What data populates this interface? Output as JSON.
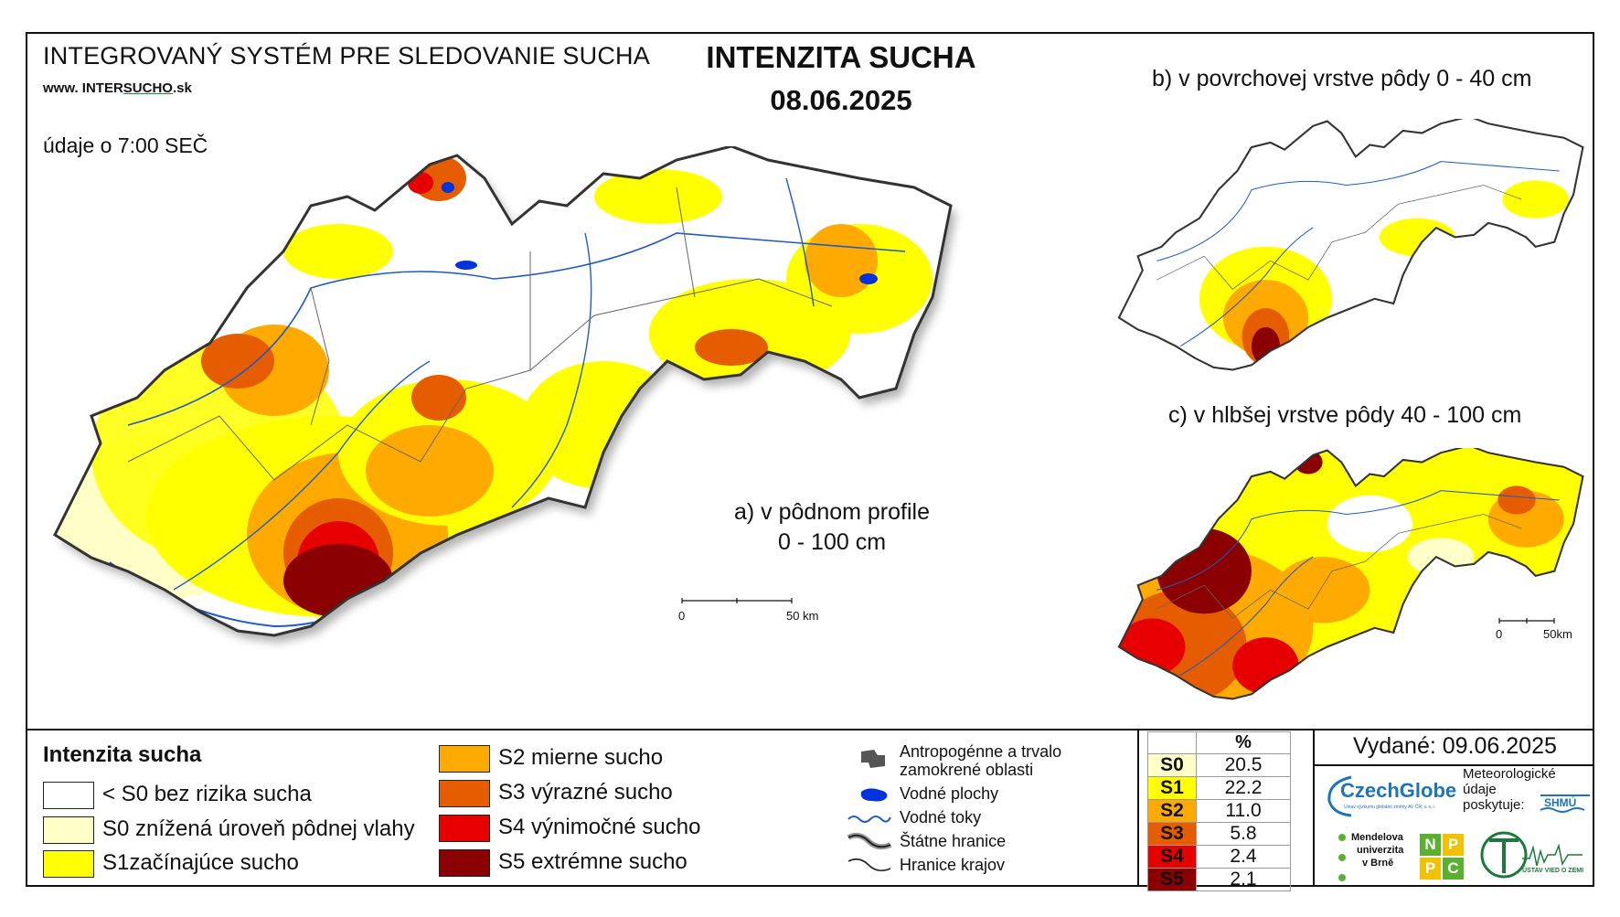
{
  "header": {
    "system_title": "INTEGROVANÝ SYSTÉM PRE SLEDOVANIE SUCHA",
    "site_prefix": "www. INTER",
    "site_mid": "SUCHO",
    "site_suffix": ".sk",
    "data_time": "údaje o 7:00 SEČ",
    "main_title": "INTENZITA SUCHA",
    "date": "08.06.2025"
  },
  "maps": {
    "a_label_line1": "a) v pôdnom profile",
    "a_label_line2": "0 - 100 cm",
    "b_label": "b) v povrchovej vrstve pôdy 0 - 40 cm",
    "c_label": "c) v hlbšej vrstve pôdy 40 - 100 cm",
    "scale_main_0": "0",
    "scale_main_50": "50 km",
    "scale_small_0": "0",
    "scale_small_50": "50km"
  },
  "legend": {
    "title": "Intenzita sucha",
    "classes": [
      {
        "label": "< S0 bez rizika sucha",
        "color": "#ffffff"
      },
      {
        "label": "S0 znížená úroveň pôdnej vlahy",
        "color": "#ffffc8"
      },
      {
        "label": "S1začínajúce sucho",
        "color": "#ffff00"
      },
      {
        "label": "S2 mierne sucho",
        "color": "#ffaa00"
      },
      {
        "label": "S3 výrazné sucho",
        "color": "#e65c00"
      },
      {
        "label": "S4 výnimočné sucho",
        "color": "#e60000"
      },
      {
        "label": "S5 extrémne sucho",
        "color": "#8b0000"
      }
    ],
    "symbols": [
      {
        "label_line1": "Antropogénne a trvalo",
        "label_line2": "zamokrené oblasti",
        "icon": "urban-area-icon"
      },
      {
        "label_line1": "Vodné plochy",
        "icon": "water-body-icon"
      },
      {
        "label_line1": "Vodné toky",
        "icon": "river-icon"
      },
      {
        "label_line1": "Štátne hranice",
        "icon": "state-border-icon"
      },
      {
        "label_line1": "Hranice krajov",
        "icon": "region-border-icon"
      }
    ]
  },
  "percent_table": {
    "header": "%",
    "rows": [
      {
        "code": "S0",
        "value": "20.5",
        "color": "#ffffc8"
      },
      {
        "code": "S1",
        "value": "22.2",
        "color": "#ffff00"
      },
      {
        "code": "S2",
        "value": "11.0",
        "color": "#ffaa00"
      },
      {
        "code": "S3",
        "value": "5.8",
        "color": "#e65c00"
      },
      {
        "code": "S4",
        "value": "2.4",
        "color": "#e60000"
      },
      {
        "code": "S5",
        "value": "2.1",
        "color": "#8b0000"
      }
    ]
  },
  "footer": {
    "issued": "Vydané: 09.06.2025",
    "meteo_line1": "Meteorologické",
    "meteo_line2": "údaje",
    "meteo_line3": "poskytuje:",
    "logos": {
      "czechglobe": "CzechGlobe",
      "czechglobe_sub": "Ústav výzkumu globální změny AV ČR, v. v. i.",
      "shmu": "SHMÚ",
      "mendel_line1": "Mendelova",
      "mendel_line2": "univerzita",
      "mendel_line3": "v Brně",
      "nppc": [
        "N",
        "P",
        "P",
        "C"
      ],
      "uvz": "ÚSTAV VIED O ZEMI"
    }
  }
}
